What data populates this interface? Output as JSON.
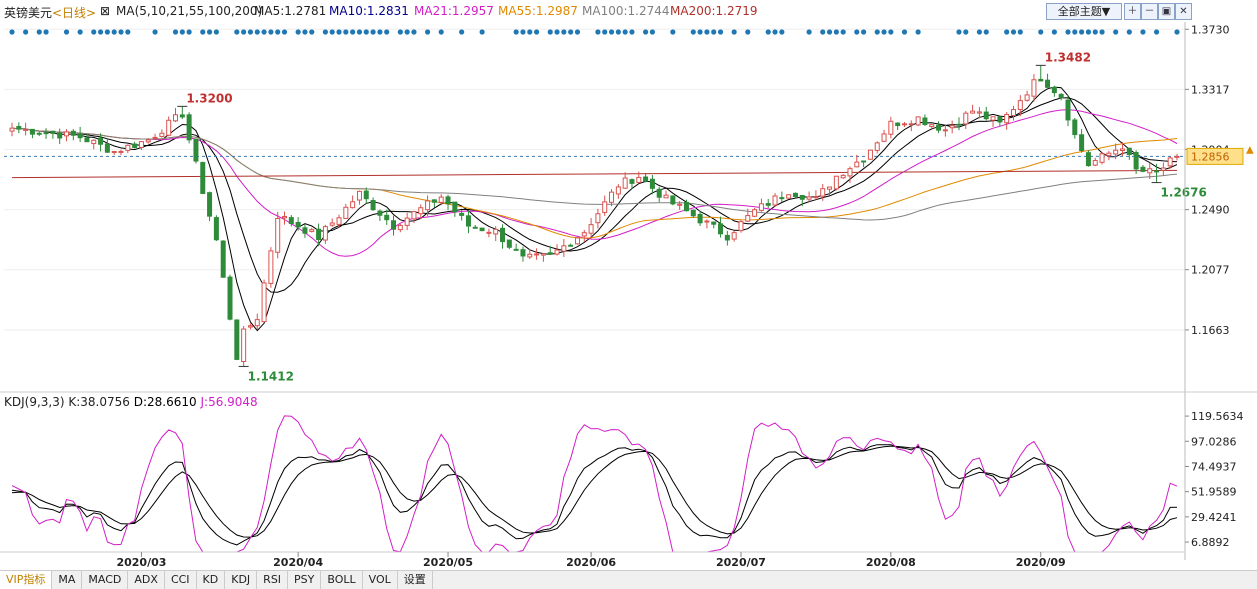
{
  "header": {
    "symbol": "英镑美元",
    "period": "<日线>",
    "ma_params": "MA(5,10,21,55,100,200)",
    "ma5": "MA5:1.2781",
    "ma10": "MA10:1.2831",
    "ma21": "MA21:1.2957",
    "ma55": "MA55:1.2987",
    "ma100": "MA100:1.2744",
    "ma200": "MA200:1.2719",
    "theme_button": "全部主题▼",
    "tool_icons": [
      "zoom-in-icon",
      "zoom-out-icon",
      "window-icon",
      "close-icon"
    ]
  },
  "colors": {
    "ma5": "#000000",
    "ma10": "#000000",
    "ma21": "#d21ec8",
    "ma55": "#e08a00",
    "ma100": "#808080",
    "ma200": "#b0302a",
    "up_candle": "#d9534f",
    "down_candle": "#2e8b3a",
    "k_line": "#000000",
    "d_line": "#000000",
    "j_line": "#d21ec8",
    "dots": "#1f77b4",
    "current_price_bg": "#ffe08a"
  },
  "kdj": {
    "params": "KDJ(9,3,3)",
    "k": "K:38.0756",
    "d": "D:28.6610",
    "j": "J:56.9048"
  },
  "tabs": [
    "VIP指标",
    "MA",
    "MACD",
    "ADX",
    "CCI",
    "KD",
    "KDJ",
    "RSI",
    "PSY",
    "BOLL",
    "VOL",
    "设置"
  ],
  "chart_data": [
    {
      "type": "candlestick",
      "title": "英镑美元 <日线>",
      "x_ticks": [
        "2020/03",
        "2020/04",
        "2020/05",
        "2020/06",
        "2020/07",
        "2020/08",
        "2020/09"
      ],
      "y_ticks": [
        1.373,
        1.3317,
        1.2904,
        1.249,
        1.2077,
        1.1663
      ],
      "ylim": [
        1.125,
        1.378
      ],
      "current_price": 1.2856,
      "dashed_ref": 1.2856,
      "annotations": [
        {
          "label": "1.3200",
          "value": 1.32,
          "color": "#c03030"
        },
        {
          "label": "1.1412",
          "value": 1.1412,
          "color": "#2e8b3a"
        },
        {
          "label": "1.3482",
          "value": 1.3482,
          "color": "#c03030"
        },
        {
          "label": "1.2676",
          "value": 1.2676,
          "color": "#2e8b3a"
        }
      ],
      "anchors": [
        {
          "x": "2020-02-03",
          "close": 1.305
        },
        {
          "x": "2020-02-17",
          "close": 1.299
        },
        {
          "x": "2020-02-24",
          "close": 1.289
        },
        {
          "x": "2020-03-02",
          "close": 1.297
        },
        {
          "x": "2020-03-09",
          "close": 1.315
        },
        {
          "x": "2020-03-12",
          "close": 1.262
        },
        {
          "x": "2020-03-16",
          "close": 1.228
        },
        {
          "x": "2020-03-18",
          "close": 1.175
        },
        {
          "x": "2020-03-19",
          "close": 1.148
        },
        {
          "x": "2020-03-20",
          "close": 1.164
        },
        {
          "x": "2020-03-24",
          "close": 1.175
        },
        {
          "x": "2020-03-27",
          "close": 1.245
        },
        {
          "x": "2020-04-01",
          "close": 1.238
        },
        {
          "x": "2020-04-06",
          "close": 1.23
        },
        {
          "x": "2020-04-14",
          "close": 1.26
        },
        {
          "x": "2020-04-21",
          "close": 1.238
        },
        {
          "x": "2020-04-30",
          "close": 1.258
        },
        {
          "x": "2020-05-06",
          "close": 1.238
        },
        {
          "x": "2020-05-12",
          "close": 1.234
        },
        {
          "x": "2020-05-18",
          "close": 1.215
        },
        {
          "x": "2020-05-22",
          "close": 1.217
        },
        {
          "x": "2020-05-29",
          "close": 1.234
        },
        {
          "x": "2020-06-05",
          "close": 1.266
        },
        {
          "x": "2020-06-10",
          "close": 1.272
        },
        {
          "x": "2020-06-16",
          "close": 1.256
        },
        {
          "x": "2020-06-22",
          "close": 1.245
        },
        {
          "x": "2020-06-29",
          "close": 1.231
        },
        {
          "x": "2020-07-03",
          "close": 1.248
        },
        {
          "x": "2020-07-10",
          "close": 1.262
        },
        {
          "x": "2020-07-16",
          "close": 1.256
        },
        {
          "x": "2020-07-21",
          "close": 1.272
        },
        {
          "x": "2020-07-27",
          "close": 1.285
        },
        {
          "x": "2020-07-31",
          "close": 1.308
        },
        {
          "x": "2020-08-06",
          "close": 1.312
        },
        {
          "x": "2020-08-12",
          "close": 1.304
        },
        {
          "x": "2020-08-18",
          "close": 1.317
        },
        {
          "x": "2020-08-24",
          "close": 1.308
        },
        {
          "x": "2020-08-31",
          "close": 1.336
        },
        {
          "x": "2020-09-01",
          "close": 1.34
        },
        {
          "x": "2020-09-04",
          "close": 1.327
        },
        {
          "x": "2020-09-08",
          "close": 1.3
        },
        {
          "x": "2020-09-10",
          "close": 1.28
        },
        {
          "x": "2020-09-14",
          "close": 1.285
        },
        {
          "x": "2020-09-17",
          "close": 1.293
        },
        {
          "x": "2020-09-21",
          "close": 1.276
        },
        {
          "x": "2020-09-24",
          "close": 1.274
        },
        {
          "x": "2020-09-29",
          "close": 1.2856
        }
      ],
      "moving_averages": [
        {
          "name": "MA5",
          "period": 5
        },
        {
          "name": "MA10",
          "period": 10
        },
        {
          "name": "MA21",
          "period": 21
        },
        {
          "name": "MA55",
          "period": 55
        },
        {
          "name": "MA100",
          "period": 100
        },
        {
          "name": "MA200",
          "period": 200
        }
      ],
      "ma200_line": [
        [
          1.271,
          1.276
        ]
      ]
    },
    {
      "type": "line",
      "title": "KDJ(9,3,3)",
      "y_ticks": [
        119.5634,
        97.0286,
        74.4937,
        51.9589,
        29.4241,
        6.8892
      ],
      "ylim": [
        -2,
        125
      ],
      "series": [
        {
          "name": "K",
          "last": 38.0756
        },
        {
          "name": "D",
          "last": 28.661
        },
        {
          "name": "J",
          "last": 56.9048
        }
      ]
    }
  ]
}
